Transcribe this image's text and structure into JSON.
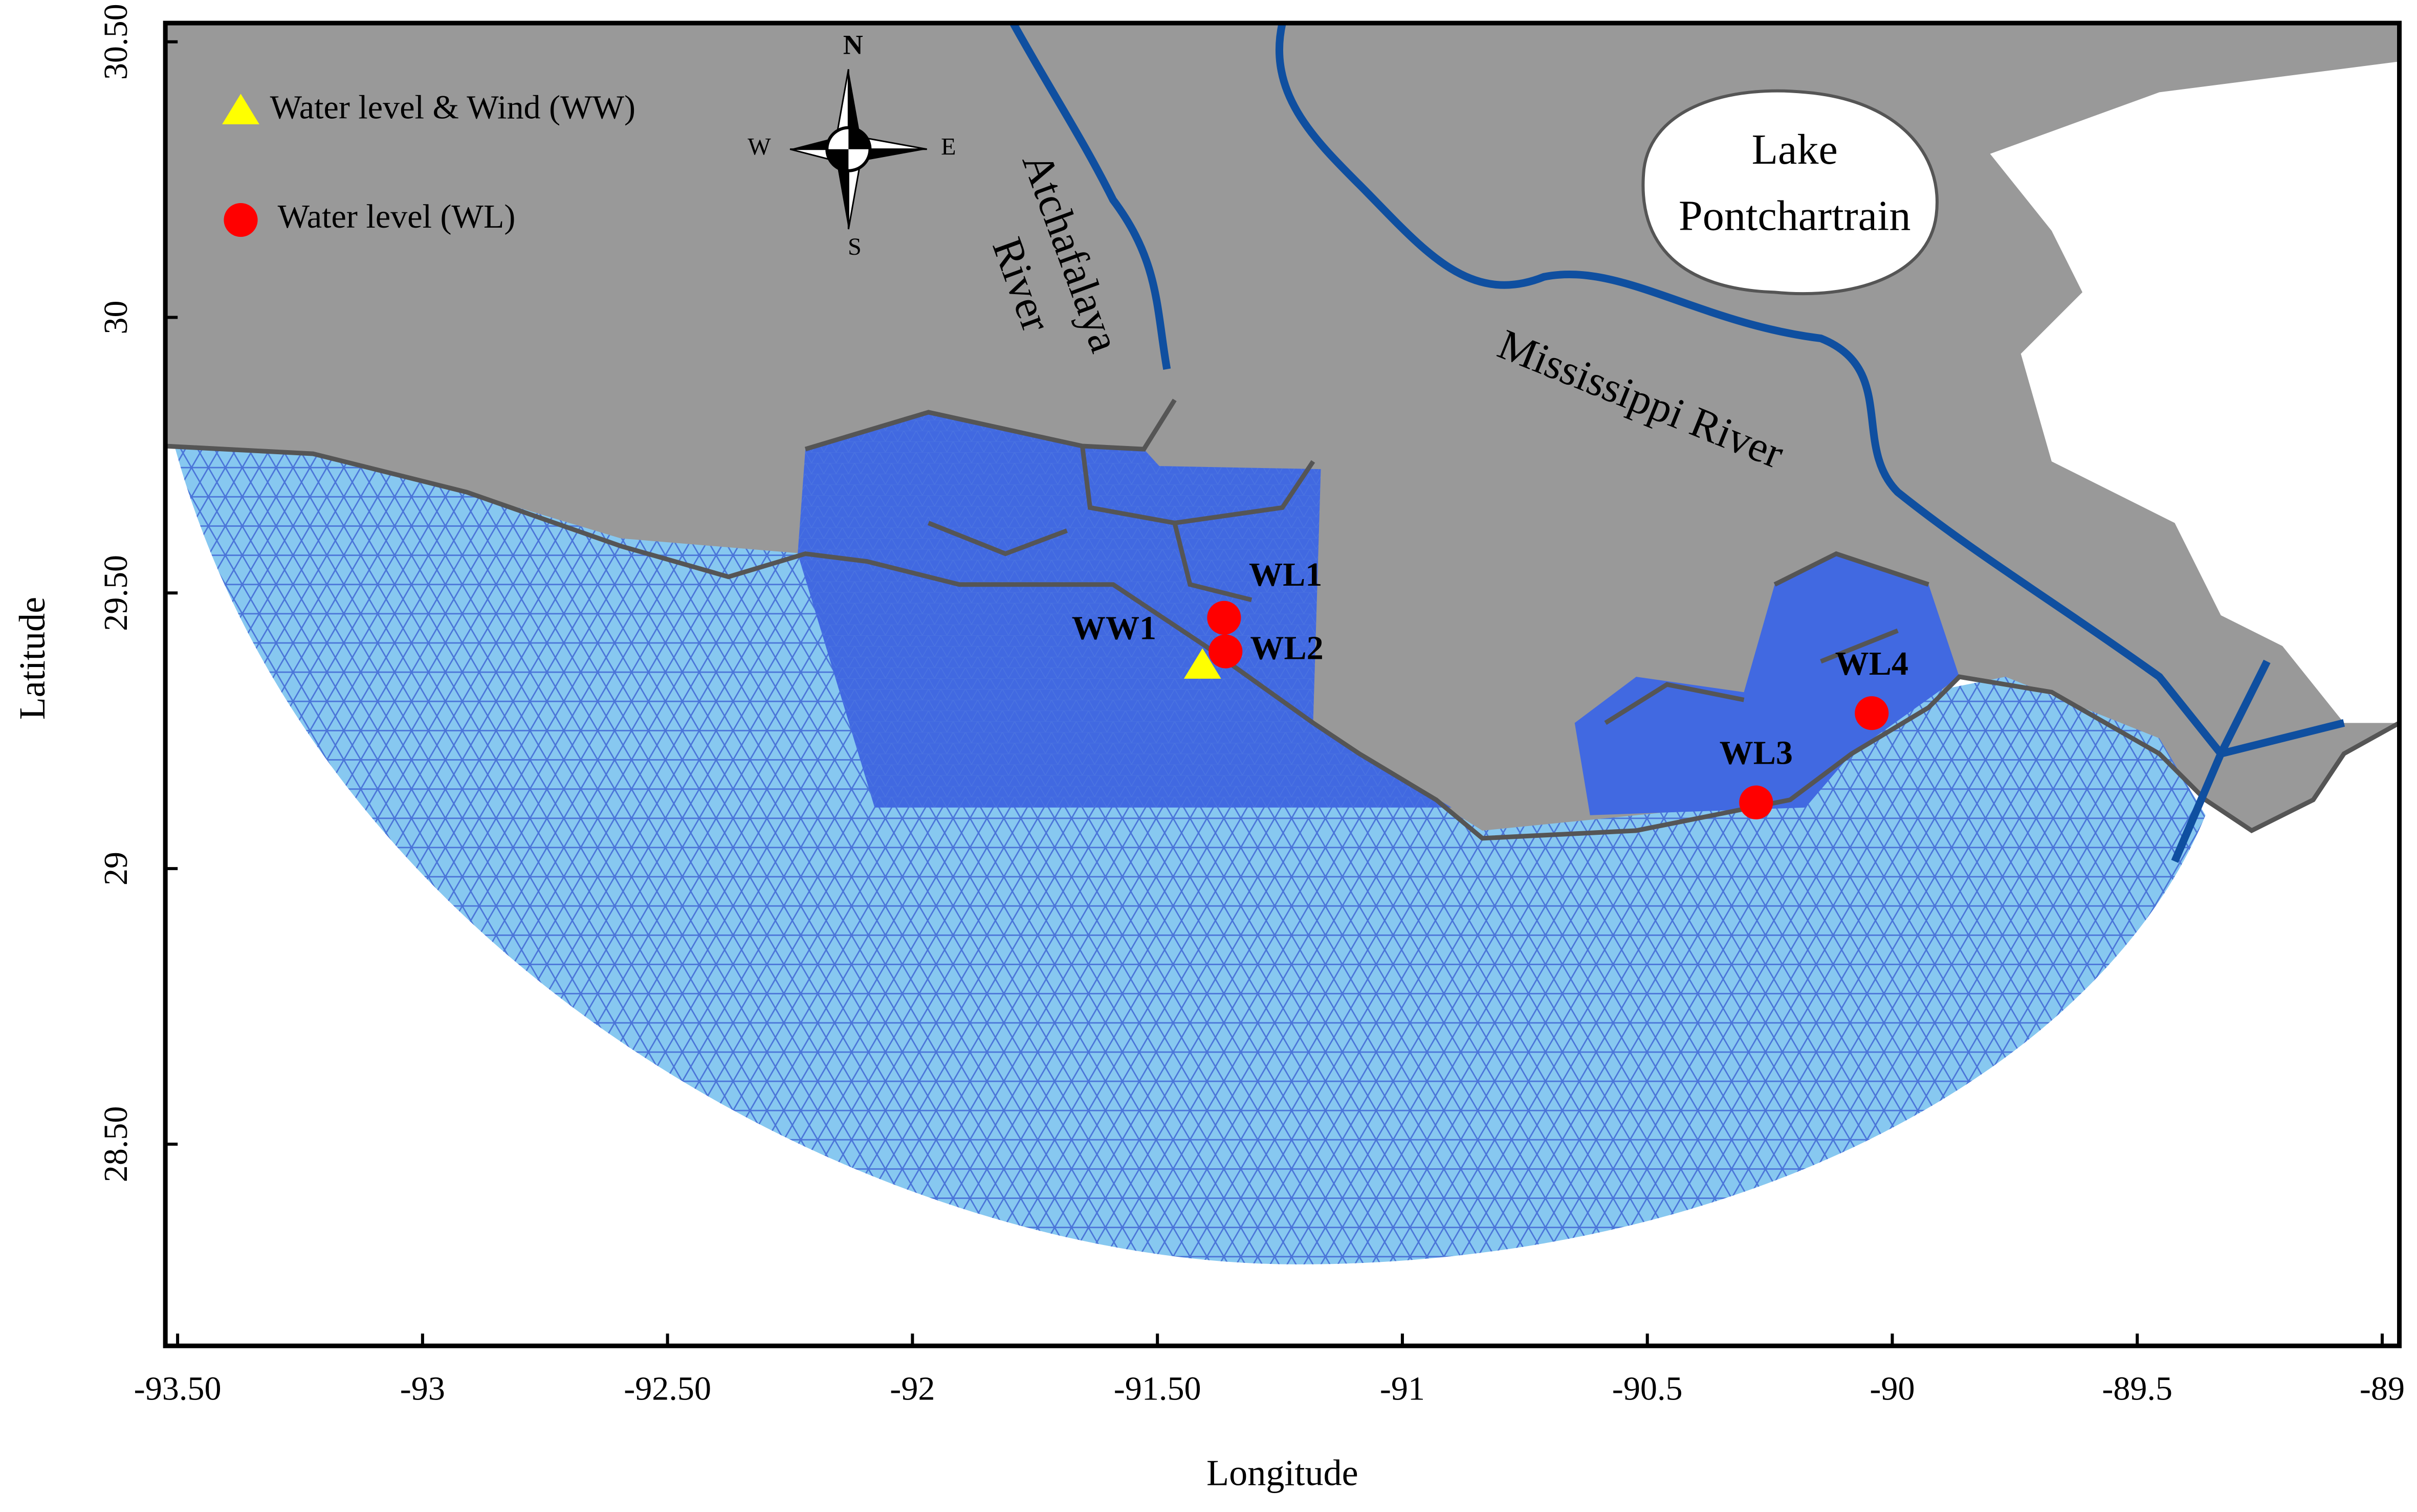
{
  "map": {
    "x_label": "Longitude",
    "y_label": "Latitude",
    "xlim": [
      -93.525,
      -88.965
    ],
    "ylim": [
      28.134,
      30.534
    ],
    "xticks": [
      {
        "value": -93.5,
        "label": "-93.50"
      },
      -93,
      {
        "value": -92.5,
        "label": "-92.50"
      },
      -92,
      {
        "value": -91.5,
        "label": "-91.50"
      },
      -91,
      -90.5,
      -90,
      -89.5,
      -89
    ],
    "yticks": [
      {
        "value": 28.5,
        "label": "28.50"
      },
      29,
      {
        "value": 29.5,
        "label": "29.50"
      },
      30,
      {
        "value": 30.5,
        "label": "30.50"
      }
    ],
    "legend": [
      {
        "label": "Water level & Wind (WW)",
        "marker": "triangle",
        "color": "#ffff00"
      },
      {
        "label": "Water level  (WL)",
        "marker": "circle",
        "color": "#ff0000"
      }
    ],
    "stations": [
      {
        "name": "WL1",
        "marker": "circle",
        "color": "#ff0000",
        "lon": -91.364,
        "lat": 29.455
      },
      {
        "name": "WL2",
        "marker": "circle",
        "color": "#ff0000",
        "lon": -91.361,
        "lat": 29.394
      },
      {
        "name": "WW1",
        "marker": "triangle",
        "color": "#ffff00",
        "lon": -91.408,
        "lat": 29.369
      },
      {
        "name": "WL3",
        "marker": "circle",
        "color": "#ff0000",
        "lon": -90.278,
        "lat": 29.12
      },
      {
        "name": "WL4",
        "marker": "circle",
        "color": "#ff0000",
        "lon": -90.042,
        "lat": 29.282
      }
    ],
    "place_labels": [
      "Atchafalaya",
      "River",
      "Mississippi River",
      "Lake",
      "Pontchartrain"
    ],
    "compass": {
      "n": "N",
      "e": "E",
      "s": "S",
      "w": "W"
    }
  }
}
